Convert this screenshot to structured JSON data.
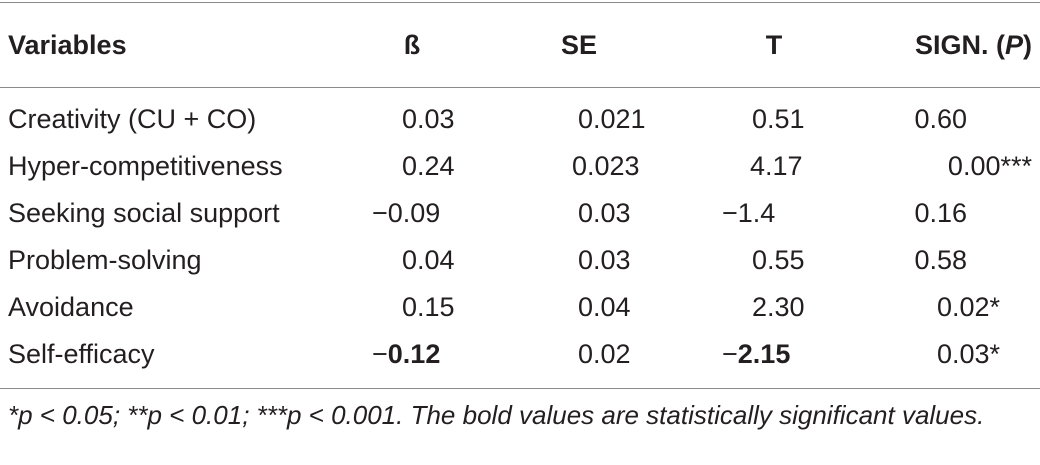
{
  "table": {
    "headers": [
      "Variables",
      "ß",
      "SE",
      "T",
      "SIGN. (",
      "P",
      ")"
    ],
    "rows": [
      {
        "variable": "Creativity (CU + CO)",
        "beta": "0.03",
        "se": "0.021",
        "t": "0.51",
        "sig": "0.60",
        "bold": false
      },
      {
        "variable": "Hyper-competitiveness",
        "beta": "0.24",
        "se": "0.023",
        "t": "4.17",
        "sig": "0.00***",
        "bold": true
      },
      {
        "variable": "Seeking social support",
        "beta": "−0.09",
        "se": "0.03",
        "t": "−1.4",
        "sig": "0.16",
        "bold": false
      },
      {
        "variable": "Problem-solving",
        "beta": "0.04",
        "se": "0.03",
        "t": "0.55",
        "sig": "0.58",
        "bold": false
      },
      {
        "variable": "Avoidance",
        "beta": "0.15",
        "se": "0.04",
        "t": "2.30",
        "sig": "0.02*",
        "bold": true
      },
      {
        "variable": "Self-efficacy",
        "beta_sign": "−",
        "beta_num": "0.12",
        "se": "0.02",
        "t_sign": "−",
        "t_num": "2.15",
        "sig": "0.03*",
        "bold": true
      }
    ]
  },
  "footnote": "*p < 0.05; **p < 0.01; ***p < 0.001. The bold values are statistically significant values."
}
